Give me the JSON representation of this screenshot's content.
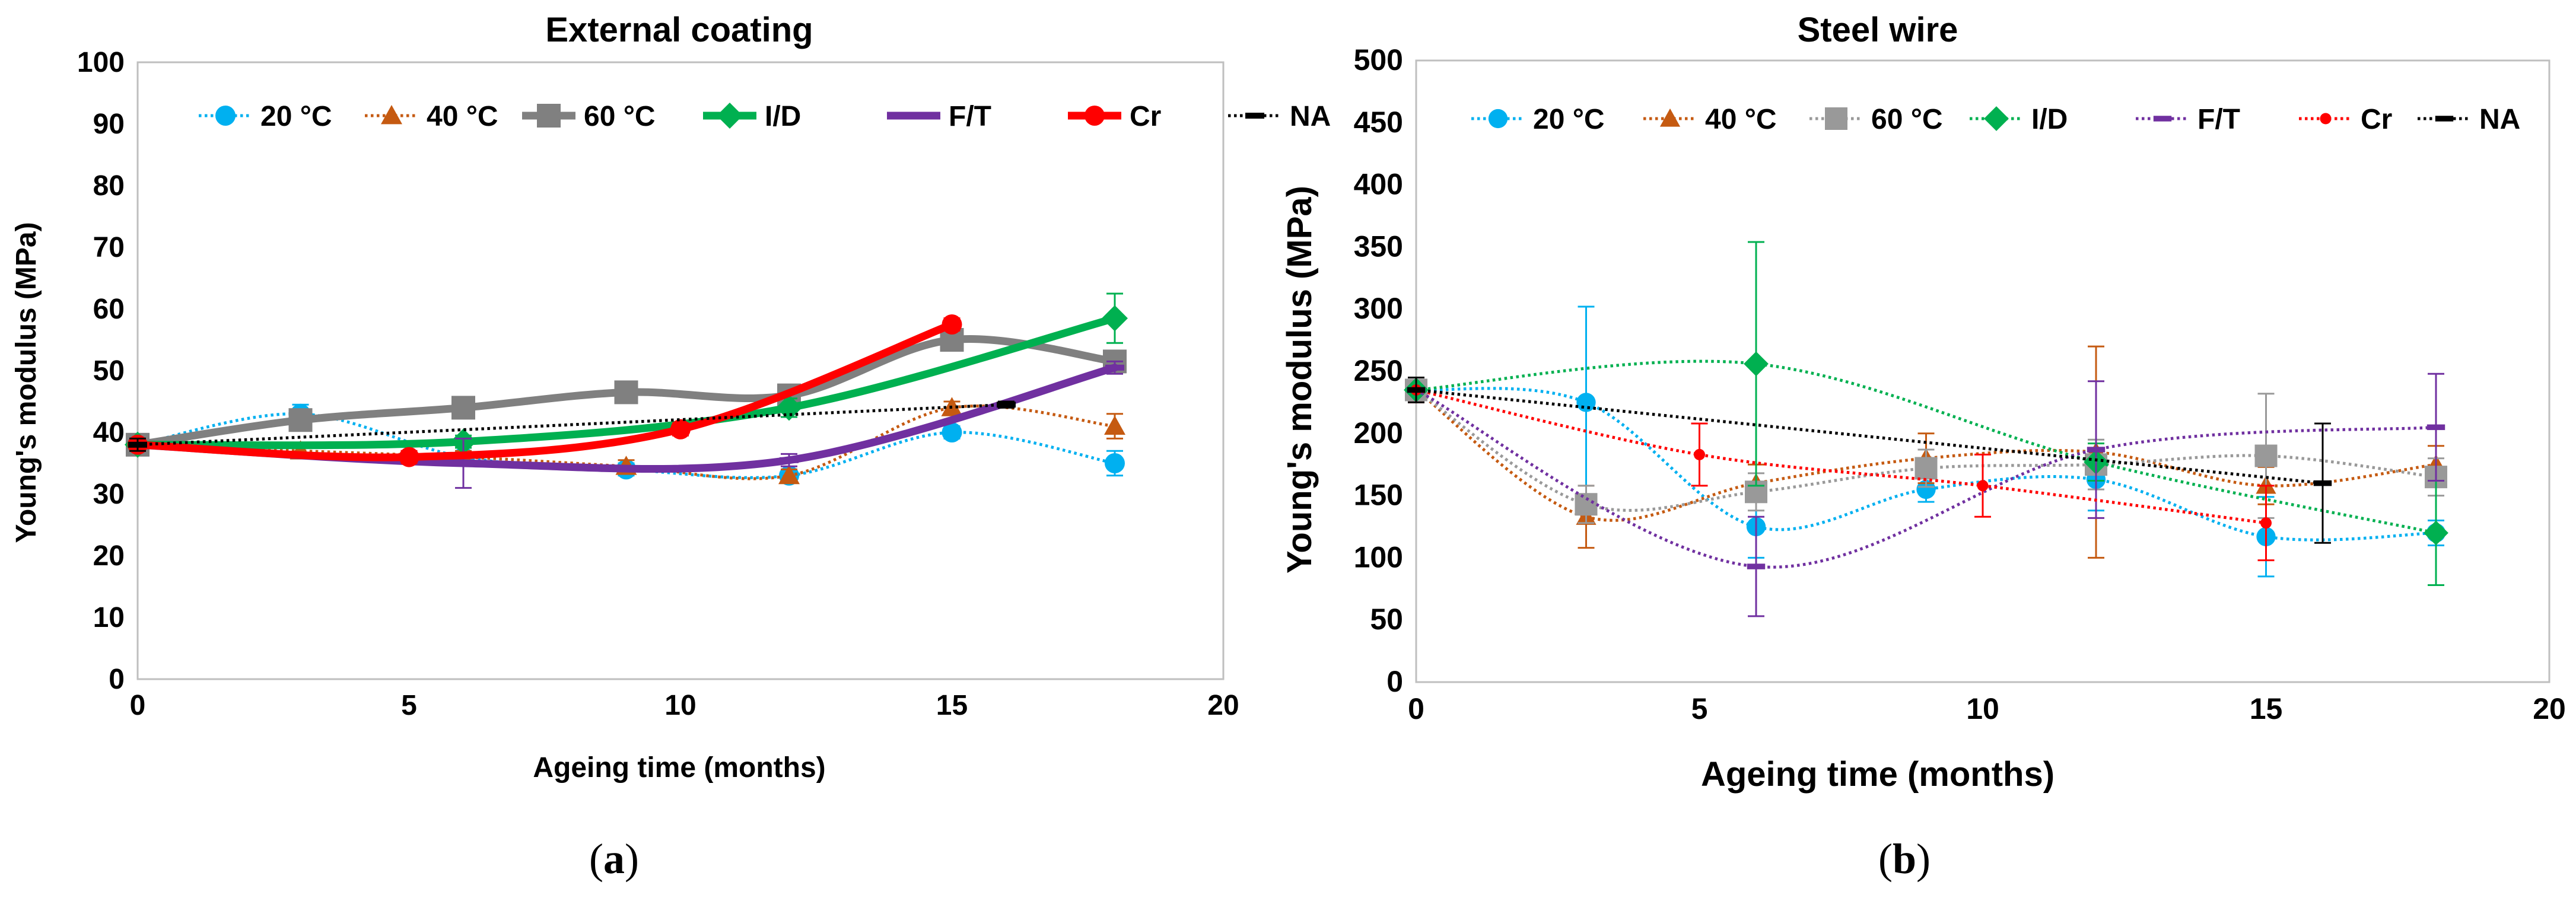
{
  "chart_data": [
    {
      "id": "a",
      "type": "line",
      "title": "External coating",
      "xlabel": "Ageing time (months)",
      "ylabel": "Young's modulus (MPa)",
      "xlim": [
        0,
        20
      ],
      "ylim": [
        0,
        100
      ],
      "xticks": [
        "0",
        "5",
        "10",
        "15",
        "20"
      ],
      "yticks": [
        "0",
        "10",
        "20",
        "30",
        "40",
        "50",
        "60",
        "70",
        "80",
        "90",
        "100"
      ],
      "grid": false,
      "legend_position": "top",
      "caption": "a",
      "series": [
        {
          "name": "20 °C",
          "color": "#00b0f0",
          "dash": "dotted",
          "marker": "circle",
          "weight": "thin",
          "x": [
            0,
            3,
            6,
            9,
            12,
            15,
            18
          ],
          "y": [
            38,
            43,
            36,
            34,
            33,
            40,
            35
          ],
          "err": [
            1,
            1.5,
            1,
            1,
            1,
            1,
            2
          ]
        },
        {
          "name": "40 °C",
          "color": "#c55a11",
          "dash": "dotted",
          "marker": "triangle",
          "weight": "thin",
          "x": [
            0,
            3,
            6,
            9,
            12,
            15,
            18
          ],
          "y": [
            38,
            37,
            36,
            34.5,
            33,
            44,
            41
          ],
          "err": [
            1,
            1,
            1,
            1,
            1,
            1,
            2
          ]
        },
        {
          "name": "60 °C",
          "color": "#808080",
          "dash": "solid",
          "marker": "square",
          "weight": "thick",
          "x": [
            0,
            3,
            6,
            9,
            12,
            15,
            18
          ],
          "y": [
            38,
            42,
            44,
            46.5,
            46,
            55,
            51.5
          ],
          "err": [
            1,
            1,
            1,
            1.5,
            1,
            1,
            1
          ]
        },
        {
          "name": "I/D",
          "color": "#00b050",
          "dash": "solid",
          "marker": "diamond",
          "weight": "thick",
          "x": [
            0,
            6,
            12,
            18
          ],
          "y": [
            38,
            38.5,
            44,
            58.5
          ],
          "err": [
            1,
            1,
            1.5,
            4
          ]
        },
        {
          "name": "F/T",
          "color": "#7030a0",
          "dash": "solid",
          "marker": "dash",
          "weight": "thick",
          "x": [
            0,
            6,
            12,
            18
          ],
          "y": [
            38,
            35,
            35.5,
            50.5
          ],
          "err": [
            1,
            4,
            1,
            1
          ]
        },
        {
          "name": "Cr",
          "color": "#ff0000",
          "dash": "solid",
          "marker": "circle",
          "weight": "thick",
          "x": [
            0,
            5,
            10,
            15
          ],
          "y": [
            38,
            36,
            40.5,
            57.5
          ],
          "err": [
            1,
            1,
            1,
            1
          ]
        },
        {
          "name": "NA",
          "color": "#000000",
          "dash": "dotted",
          "marker": "dash",
          "weight": "thin",
          "x": [
            0,
            16
          ],
          "y": [
            38,
            44.5
          ],
          "err": [
            1,
            0.5
          ]
        }
      ]
    },
    {
      "id": "b",
      "type": "line",
      "title": "Steel wire",
      "xlabel": "Ageing time (months)",
      "ylabel": "Young's modulus (MPa)",
      "xlim": [
        0,
        20
      ],
      "ylim": [
        0,
        500
      ],
      "xticks": [
        "0",
        "5",
        "10",
        "15",
        "20"
      ],
      "yticks": [
        "0",
        "50",
        "100",
        "150",
        "200",
        "250",
        "300",
        "350",
        "400",
        "450",
        "500"
      ],
      "grid": false,
      "legend_position": "top",
      "caption": "b",
      "series": [
        {
          "name": "20 °C",
          "color": "#00b0f0",
          "dash": "dotted",
          "marker": "circle",
          "weight": "thin",
          "x": [
            0,
            3,
            6,
            9,
            12,
            15,
            18
          ],
          "y": [
            235,
            225,
            125,
            155,
            163,
            117,
            120
          ],
          "err": [
            10,
            77,
            25,
            10,
            25,
            32,
            10
          ]
        },
        {
          "name": "40 °C",
          "color": "#c55a11",
          "dash": "dotted",
          "marker": "triangle",
          "weight": "thin",
          "x": [
            0,
            3,
            6,
            9,
            12,
            15,
            18
          ],
          "y": [
            235,
            133,
            160,
            180,
            185,
            158,
            175
          ],
          "err": [
            10,
            25,
            15,
            20,
            85,
            15,
            15
          ]
        },
        {
          "name": "60 °C",
          "color": "#999999",
          "dash": "dotted",
          "marker": "square",
          "weight": "thin",
          "x": [
            0,
            3,
            6,
            9,
            12,
            15,
            18
          ],
          "y": [
            235,
            143,
            153,
            172,
            175,
            182,
            165
          ],
          "err": [
            10,
            15,
            15,
            15,
            20,
            50,
            15
          ]
        },
        {
          "name": "I/D",
          "color": "#00b050",
          "dash": "dotted",
          "marker": "diamond",
          "weight": "thin",
          "x": [
            0,
            6,
            12,
            18
          ],
          "y": [
            235,
            256,
            177,
            120
          ],
          "err": [
            10,
            98,
            15,
            42
          ]
        },
        {
          "name": "F/T",
          "color": "#7030a0",
          "dash": "dotted",
          "marker": "dash",
          "weight": "thin",
          "x": [
            0,
            6,
            12,
            18
          ],
          "y": [
            235,
            93,
            187,
            205
          ],
          "err": [
            10,
            40,
            55,
            43
          ]
        },
        {
          "name": "Cr",
          "color": "#ff0000",
          "dash": "dotted",
          "marker": "circle-small",
          "weight": "thin",
          "x": [
            0,
            5,
            10,
            15
          ],
          "y": [
            235,
            183,
            158,
            128
          ],
          "err": [
            10,
            25,
            25,
            30
          ]
        },
        {
          "name": "NA",
          "color": "#000000",
          "dash": "dotted",
          "marker": "dash",
          "weight": "thin",
          "x": [
            0,
            16
          ],
          "y": [
            235,
            160
          ],
          "err": [
            10,
            48
          ]
        }
      ]
    }
  ]
}
